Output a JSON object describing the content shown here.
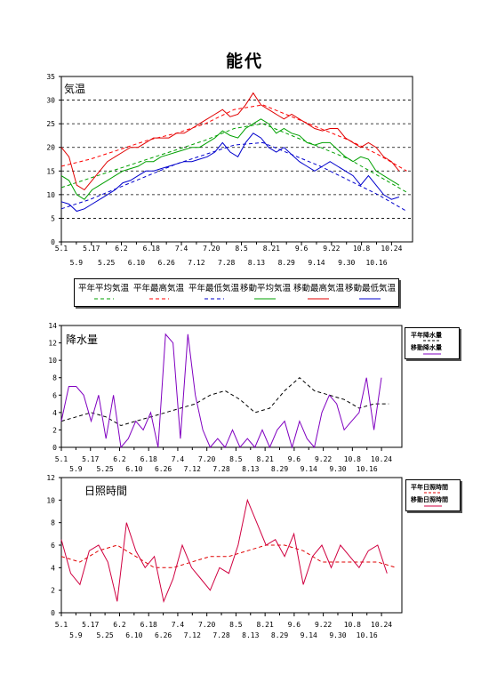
{
  "title": "能代",
  "colors": {
    "normal_avg": "#00a000",
    "normal_max": "#ff0000",
    "normal_min": "#0000cc",
    "moving_avg": "#00a000",
    "moving_max": "#e00000",
    "moving_min": "#0000cc",
    "rain_normal": "#000000",
    "rain_moving": "#8000c0",
    "sun_normal": "#e00000",
    "sun_moving": "#d00040",
    "grid": "#000000"
  },
  "x_ticks_top": [
    "5.1",
    "5.17",
    "6.2",
    "6.18",
    "7.4",
    "7.20",
    "8.5",
    "8.21",
    "9.6",
    "9.22",
    "10.8",
    "10.24"
  ],
  "x_ticks_bottom": [
    "5.9",
    "5.25",
    "6.10",
    "6.26",
    "7.12",
    "7.28",
    "8.13",
    "8.29",
    "9.14",
    "9.30",
    "10.16"
  ],
  "panels": {
    "temperature": {
      "label": "気温",
      "y_ticks": [
        "0",
        "5",
        "10",
        "15",
        "20",
        "25",
        "30",
        "35"
      ],
      "legend": [
        "平年平均気温",
        "平年最高気温",
        "平年最低気温",
        "移動平均気温",
        "移動最高気温",
        "移動最低気温"
      ]
    },
    "precip": {
      "label": "降水量",
      "y_ticks": [
        "0",
        "2",
        "4",
        "6",
        "8",
        "10",
        "12",
        "14"
      ],
      "legend": [
        "平年降水量",
        "移動降水量"
      ]
    },
    "sunshine": {
      "label": "日照時間",
      "y_ticks": [
        "0",
        "2",
        "4",
        "6",
        "8",
        "10",
        "12"
      ],
      "legend": [
        "平年日照時間",
        "移動日照時間"
      ]
    }
  },
  "chart_data": [
    {
      "type": "line",
      "title": "気温",
      "ylim": [
        0,
        35
      ],
      "x_start": "5.1",
      "x_end": "10.31",
      "series": [
        {
          "name": "平年平均気温",
          "style": "dashed",
          "color": "#00a000",
          "x": [
            0,
            15,
            30,
            45,
            60,
            75,
            90,
            105,
            120,
            135,
            150,
            165,
            180
          ],
          "values": [
            11.5,
            13.5,
            15.5,
            17.5,
            19.5,
            21.5,
            24,
            25,
            22.5,
            20,
            17.5,
            14,
            10.5
          ]
        },
        {
          "name": "平年最高気温",
          "style": "dashed",
          "color": "#ff0000",
          "x": [
            0,
            15,
            30,
            45,
            60,
            75,
            90,
            105,
            120,
            135,
            150,
            165,
            180
          ],
          "values": [
            16,
            17.5,
            19.5,
            21.5,
            23,
            25,
            28,
            29,
            26.5,
            24,
            21.5,
            18.5,
            15
          ]
        },
        {
          "name": "平年最低気温",
          "style": "dashed",
          "color": "#0000cc",
          "x": [
            0,
            15,
            30,
            45,
            60,
            75,
            90,
            105,
            120,
            135,
            150,
            165,
            180
          ],
          "values": [
            7,
            9,
            11.5,
            14,
            16.5,
            18.5,
            20.5,
            21,
            18.5,
            16,
            13,
            10,
            6.5
          ]
        },
        {
          "name": "移動平均気温",
          "style": "solid",
          "color": "#00a000",
          "x": [
            0,
            4,
            8,
            12,
            16,
            20,
            24,
            28,
            32,
            36,
            40,
            44,
            48,
            52,
            56,
            60,
            64,
            68,
            72,
            76,
            80,
            84,
            88,
            92,
            96,
            100,
            104,
            108,
            112,
            116,
            120,
            124,
            128,
            132,
            136,
            140,
            144,
            148,
            152,
            156,
            160,
            164,
            168,
            172,
            176
          ],
          "values": [
            14,
            13,
            10,
            9,
            11,
            12,
            13,
            14,
            15,
            15.5,
            16,
            17,
            17,
            18,
            18.5,
            19,
            19.5,
            20,
            20,
            21,
            22,
            23.5,
            22.5,
            22,
            24,
            25,
            26,
            25,
            23,
            24,
            23,
            22.5,
            21,
            20.5,
            21,
            21,
            19.5,
            18,
            17,
            18,
            17.5,
            15,
            14,
            13,
            12
          ]
        },
        {
          "name": "移動最高気温",
          "style": "solid",
          "color": "#e00000",
          "x": [
            0,
            4,
            8,
            12,
            16,
            20,
            24,
            28,
            32,
            36,
            40,
            44,
            48,
            52,
            56,
            60,
            64,
            68,
            72,
            76,
            80,
            84,
            88,
            92,
            96,
            100,
            104,
            108,
            112,
            116,
            120,
            124,
            128,
            132,
            136,
            140,
            144,
            148,
            152,
            156,
            160,
            164,
            168,
            172,
            176
          ],
          "values": [
            20,
            18,
            12,
            11,
            13,
            15,
            17,
            18,
            19,
            20,
            20,
            21,
            22,
            22,
            22,
            23,
            23,
            24,
            25,
            26,
            27,
            28,
            26.5,
            27,
            29,
            31.5,
            29,
            28,
            27,
            26,
            27,
            26,
            25,
            24,
            23.5,
            24,
            24,
            22,
            21,
            20,
            21,
            20,
            18,
            17,
            15
          ]
        },
        {
          "name": "移動最低気温",
          "style": "solid",
          "color": "#0000cc",
          "x": [
            0,
            4,
            8,
            12,
            16,
            20,
            24,
            28,
            32,
            36,
            40,
            44,
            48,
            52,
            56,
            60,
            64,
            68,
            72,
            76,
            80,
            84,
            88,
            92,
            96,
            100,
            104,
            108,
            112,
            116,
            120,
            124,
            128,
            132,
            136,
            140,
            144,
            148,
            152,
            156,
            160,
            164,
            168,
            172,
            176
          ],
          "values": [
            8.5,
            8,
            6.5,
            7,
            8,
            9,
            10,
            11,
            12.5,
            13,
            14,
            15,
            15,
            15.5,
            16,
            16.5,
            17,
            17,
            17.5,
            18,
            19,
            21,
            19,
            18,
            21,
            23,
            22,
            20,
            19,
            20,
            18.5,
            17,
            16,
            15,
            16,
            17,
            16,
            15,
            14,
            12,
            14,
            12,
            10,
            9,
            9.5
          ]
        }
      ]
    },
    {
      "type": "line",
      "title": "降水量",
      "ylim": [
        0,
        14
      ],
      "x_start": "5.1",
      "x_end": "10.31",
      "series": [
        {
          "name": "平年降水量",
          "style": "dashed",
          "color": "#000000",
          "x": [
            0,
            8,
            16,
            24,
            32,
            40,
            48,
            56,
            64,
            72,
            80,
            88,
            96,
            104,
            112,
            120,
            128,
            136,
            144,
            152,
            160,
            168,
            176
          ],
          "values": [
            3,
            3.5,
            4,
            3.5,
            2.5,
            3,
            3.5,
            4,
            4.5,
            5,
            6,
            6.5,
            5.5,
            4,
            4.5,
            6.5,
            8,
            6.5,
            6,
            5.5,
            4.5,
            5,
            5
          ]
        },
        {
          "name": "移動降水量",
          "style": "solid",
          "color": "#8000c0",
          "x": [
            0,
            4,
            8,
            12,
            16,
            20,
            24,
            28,
            32,
            36,
            40,
            44,
            48,
            52,
            56,
            60,
            64,
            68,
            72,
            76,
            80,
            84,
            88,
            92,
            96,
            100,
            104,
            108,
            112,
            116,
            120,
            124,
            128,
            132,
            136,
            140,
            144,
            148,
            152,
            156,
            160,
            164,
            168,
            172
          ],
          "values": [
            3,
            7,
            7,
            6,
            3,
            6,
            1,
            6,
            0,
            1,
            3,
            2,
            4,
            0,
            13,
            12,
            1,
            13,
            6,
            2,
            0,
            1,
            0,
            2,
            0,
            1,
            0,
            2,
            0,
            2,
            3,
            0,
            3,
            1,
            0,
            4,
            6,
            5,
            2,
            3,
            4,
            8,
            2,
            8
          ]
        }
      ]
    },
    {
      "type": "line",
      "title": "日照時間",
      "ylim": [
        0,
        12
      ],
      "x_start": "5.1",
      "x_end": "10.31",
      "series": [
        {
          "name": "平年日照時間",
          "style": "dashed",
          "color": "#e00000",
          "x": [
            0,
            10,
            20,
            30,
            40,
            50,
            60,
            70,
            80,
            90,
            100,
            110,
            120,
            130,
            140,
            150,
            160,
            170,
            180
          ],
          "values": [
            5,
            4.5,
            5.5,
            6,
            5,
            4,
            4,
            4.5,
            5,
            5,
            5.5,
            6,
            6,
            5.5,
            4.5,
            4.5,
            4.5,
            4.5,
            4
          ]
        },
        {
          "name": "移動日照時間",
          "style": "solid",
          "color": "#d00040",
          "x": [
            0,
            5,
            10,
            15,
            20,
            25,
            30,
            35,
            40,
            45,
            50,
            55,
            60,
            65,
            70,
            75,
            80,
            85,
            90,
            95,
            100,
            105,
            110,
            115,
            120,
            125,
            130,
            135,
            140,
            145,
            150,
            155,
            160,
            165,
            170,
            175
          ],
          "values": [
            6.5,
            3.5,
            2.5,
            5.5,
            6,
            4.5,
            1,
            8,
            5.5,
            4,
            5,
            1,
            3,
            6,
            4,
            3,
            2,
            4,
            3.5,
            6,
            10,
            8,
            6,
            6.5,
            5,
            7,
            2.5,
            5,
            6,
            4,
            6,
            5,
            4,
            5.5,
            6,
            3.5
          ]
        }
      ]
    }
  ]
}
